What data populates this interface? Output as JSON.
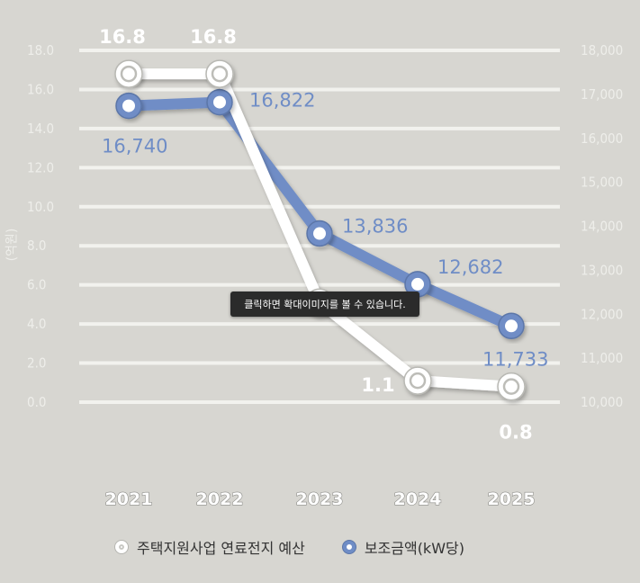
{
  "chart_data": {
    "type": "line",
    "categories": [
      "2021",
      "2022",
      "2023",
      "2024",
      "2025"
    ],
    "series": [
      {
        "name": "주택지원사업 연료전지 예산",
        "axis": "left",
        "values": [
          16.8,
          16.8,
          5.1,
          1.1,
          0.8
        ],
        "labels": [
          "16.8",
          "16.8",
          "",
          "1.1",
          "0.8"
        ],
        "color": "#ffffff"
      },
      {
        "name": "보조금액(kW당)",
        "axis": "right",
        "values": [
          16740,
          16822,
          13836,
          12682,
          11733
        ],
        "labels": [
          "16,740",
          "16,822",
          "13,836",
          "12,682",
          "11,733"
        ],
        "color": "#6f8dc6"
      }
    ],
    "yleft": {
      "label": "(억원)",
      "ylim": [
        0,
        18
      ],
      "ticks": [
        "0.0",
        "2.0",
        "4.0",
        "6.0",
        "8.0",
        "10.0",
        "12.0",
        "14.0",
        "16.0",
        "18.0"
      ]
    },
    "yright": {
      "ylim": [
        10000,
        18000
      ],
      "ticks": [
        "10,000",
        "11,000",
        "12,000",
        "13,000",
        "14,000",
        "15,000",
        "16,000",
        "17,000",
        "18,000"
      ]
    },
    "grid": true,
    "legend_position": "bottom"
  },
  "tooltip": "클릭하면 확대이미지를 볼 수 있습니다.",
  "legend": {
    "budget": "주택지원사업 연료전지 예산",
    "subsidy": "보조금액(kW당)"
  },
  "colors": {
    "background": "#d7d6d1",
    "budget_line": "#ffffff",
    "subsidy_line": "#6f8dc6"
  }
}
